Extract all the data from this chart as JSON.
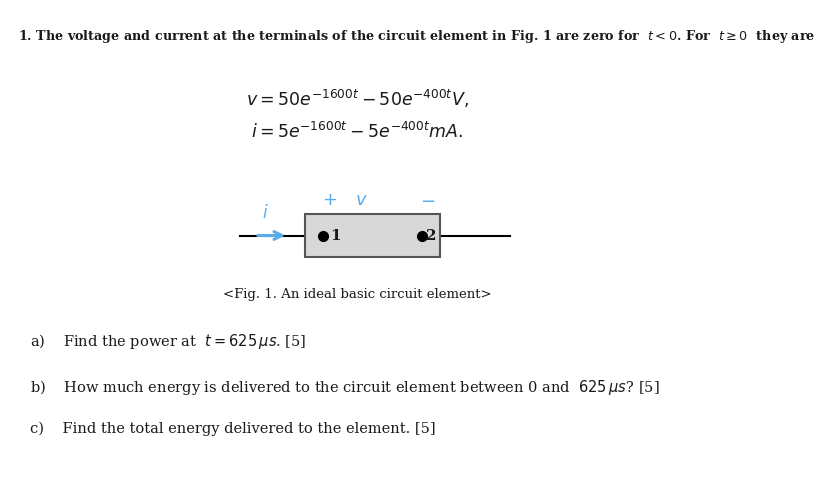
{
  "title_text": "1. The voltage and current at the terminals of the circuit element in Fig. 1 are zero for  $t < 0$. For  $t \\geq 0$  they are",
  "eq1": "$v = 50e^{-1600t} - 50e^{-400t}V,$",
  "eq2": "$i = 5e^{-1600t} - 5e^{-400t}mA.$",
  "fig_caption": "<Fig. 1. An ideal basic circuit element>",
  "qa": "a)    Find the power at  $t = 625\\,\\mu s$. [5]",
  "qb": "b)    How much energy is delivered to the circuit element between 0 and  $625\\,\\mu s$? [5]",
  "qc": "c)    Find the total energy delivered to the element. [5]",
  "box_facecolor": "#d8d8d8",
  "box_edgecolor": "#555555",
  "arrow_color": "#5aace8",
  "text_color": "#1a1a1a",
  "bg_color": "#ffffff",
  "cyan_color": "#5aace8",
  "title_fontsize": 9.2,
  "eq_fontsize": 12.5,
  "caption_fontsize": 9.5,
  "q_fontsize": 10.5
}
